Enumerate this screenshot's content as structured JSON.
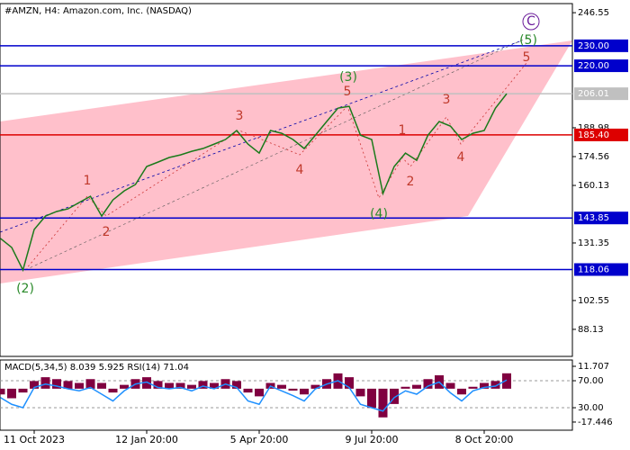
{
  "chart_data": [
    {
      "type": "line",
      "title": "#AMZN, H4:  Amazon.com, Inc. (NASDAQ)",
      "categories": [
        null,
        null,
        null,
        "11 Oct 2023",
        null,
        null,
        null,
        null,
        null,
        null,
        null,
        null,
        null,
        "12 Jan 20:00",
        null,
        null,
        null,
        null,
        null,
        null,
        null,
        null,
        null,
        "5 Apr 20:00",
        null,
        null,
        null,
        null,
        null,
        null,
        null,
        null,
        null,
        "9 Jul 20:00",
        null,
        null,
        null,
        null,
        null,
        null,
        null,
        null,
        null,
        "8 Oct 20:00",
        null,
        null,
        null,
        null,
        null,
        null,
        null
      ],
      "values": [
        133.6,
        129.1,
        117.8,
        138.1,
        144.8,
        147.1,
        148.4,
        151.6,
        154.7,
        144.8,
        152.9,
        157.4,
        160.6,
        169.6,
        171.8,
        174.1,
        175.4,
        177.2,
        178.6,
        180.8,
        183.1,
        187.6,
        180.8,
        176.3,
        187.6,
        186.2,
        183.1,
        178.6,
        185.3,
        192.1,
        198.8,
        199.7,
        185.3,
        183.1,
        156.1,
        169.6,
        176.3,
        172.7,
        185.3,
        192.1,
        189.8,
        183.1,
        186.2,
        187.6,
        198.8,
        206.01,
        null,
        null,
        null,
        null,
        null
      ],
      "color": "#1a7a1a",
      "ylim": [
        74.6,
        251.1
      ],
      "yticks": [
        {
          "value": 246.55,
          "label": "246.55"
        },
        {
          "value": 188.98,
          "label": "188.98"
        },
        {
          "value": 174.56,
          "label": "174.56"
        },
        {
          "value": 160.13,
          "label": "160.13"
        },
        {
          "value": 131.35,
          "label": "131.35"
        },
        {
          "value": 102.55,
          "label": "102.55"
        },
        {
          "value": 88.13,
          "label": "88.13"
        }
      ],
      "levels": [
        {
          "value": 230,
          "label": "230.00",
          "color": "#0000cc"
        },
        {
          "value": 220,
          "label": "220.00",
          "color": "#0000cc"
        },
        {
          "value": 206.01,
          "label": "206.01",
          "color": "#c0c0c0"
        },
        {
          "value": 185.4,
          "label": "185.40",
          "color": "#dd0000"
        },
        {
          "value": 143.85,
          "label": "143.85",
          "color": "#0000cc"
        },
        {
          "value": 118.06,
          "label": "118.06",
          "color": "#0000cc"
        }
      ],
      "annotations": [
        "(2)",
        "1",
        "2",
        "3",
        "4",
        "5",
        "(3)",
        "(4)",
        "1",
        "2",
        "3",
        "4",
        "5",
        "(5)",
        "C"
      ]
    },
    {
      "type": "macd",
      "title": "MACD(5,34,5) 8.039 5.925 RSI(14) 71.04",
      "series": [
        {
          "color": "#800040",
          "values": [
            -3,
            -5,
            -2,
            4,
            6,
            5,
            4,
            3,
            5,
            3,
            -2,
            2,
            5,
            6,
            4,
            3,
            3,
            2,
            4,
            3,
            5,
            4,
            -2,
            -4,
            3,
            2,
            -1,
            -3,
            2,
            5,
            8,
            6,
            -4,
            -10,
            -15,
            -8,
            1,
            2,
            5,
            7,
            3,
            -3,
            1,
            3,
            4,
            8.039,
            null,
            null,
            null,
            null,
            null
          ]
        },
        {
          "color": "#1e90ff",
          "axis": "y2",
          "values": [
            45,
            35,
            30,
            60,
            65,
            62,
            58,
            55,
            60,
            50,
            40,
            55,
            65,
            68,
            60,
            58,
            60,
            55,
            62,
            58,
            65,
            60,
            40,
            35,
            62,
            55,
            48,
            40,
            58,
            65,
            70,
            60,
            35,
            30,
            25,
            45,
            55,
            50,
            62,
            68,
            52,
            40,
            55,
            60,
            62,
            71.04,
            null,
            null,
            null,
            null,
            null
          ]
        }
      ],
      "ylim": [
        -21.7,
        15.0
      ],
      "yticks": [
        11.707,
        -17.446
      ],
      "y2lim": [
        -3.3,
        100.7
      ],
      "y2ticks": [
        {
          "value": 70,
          "label": "70.00"
        },
        {
          "value": 30,
          "label": "30.00"
        }
      ]
    }
  ]
}
